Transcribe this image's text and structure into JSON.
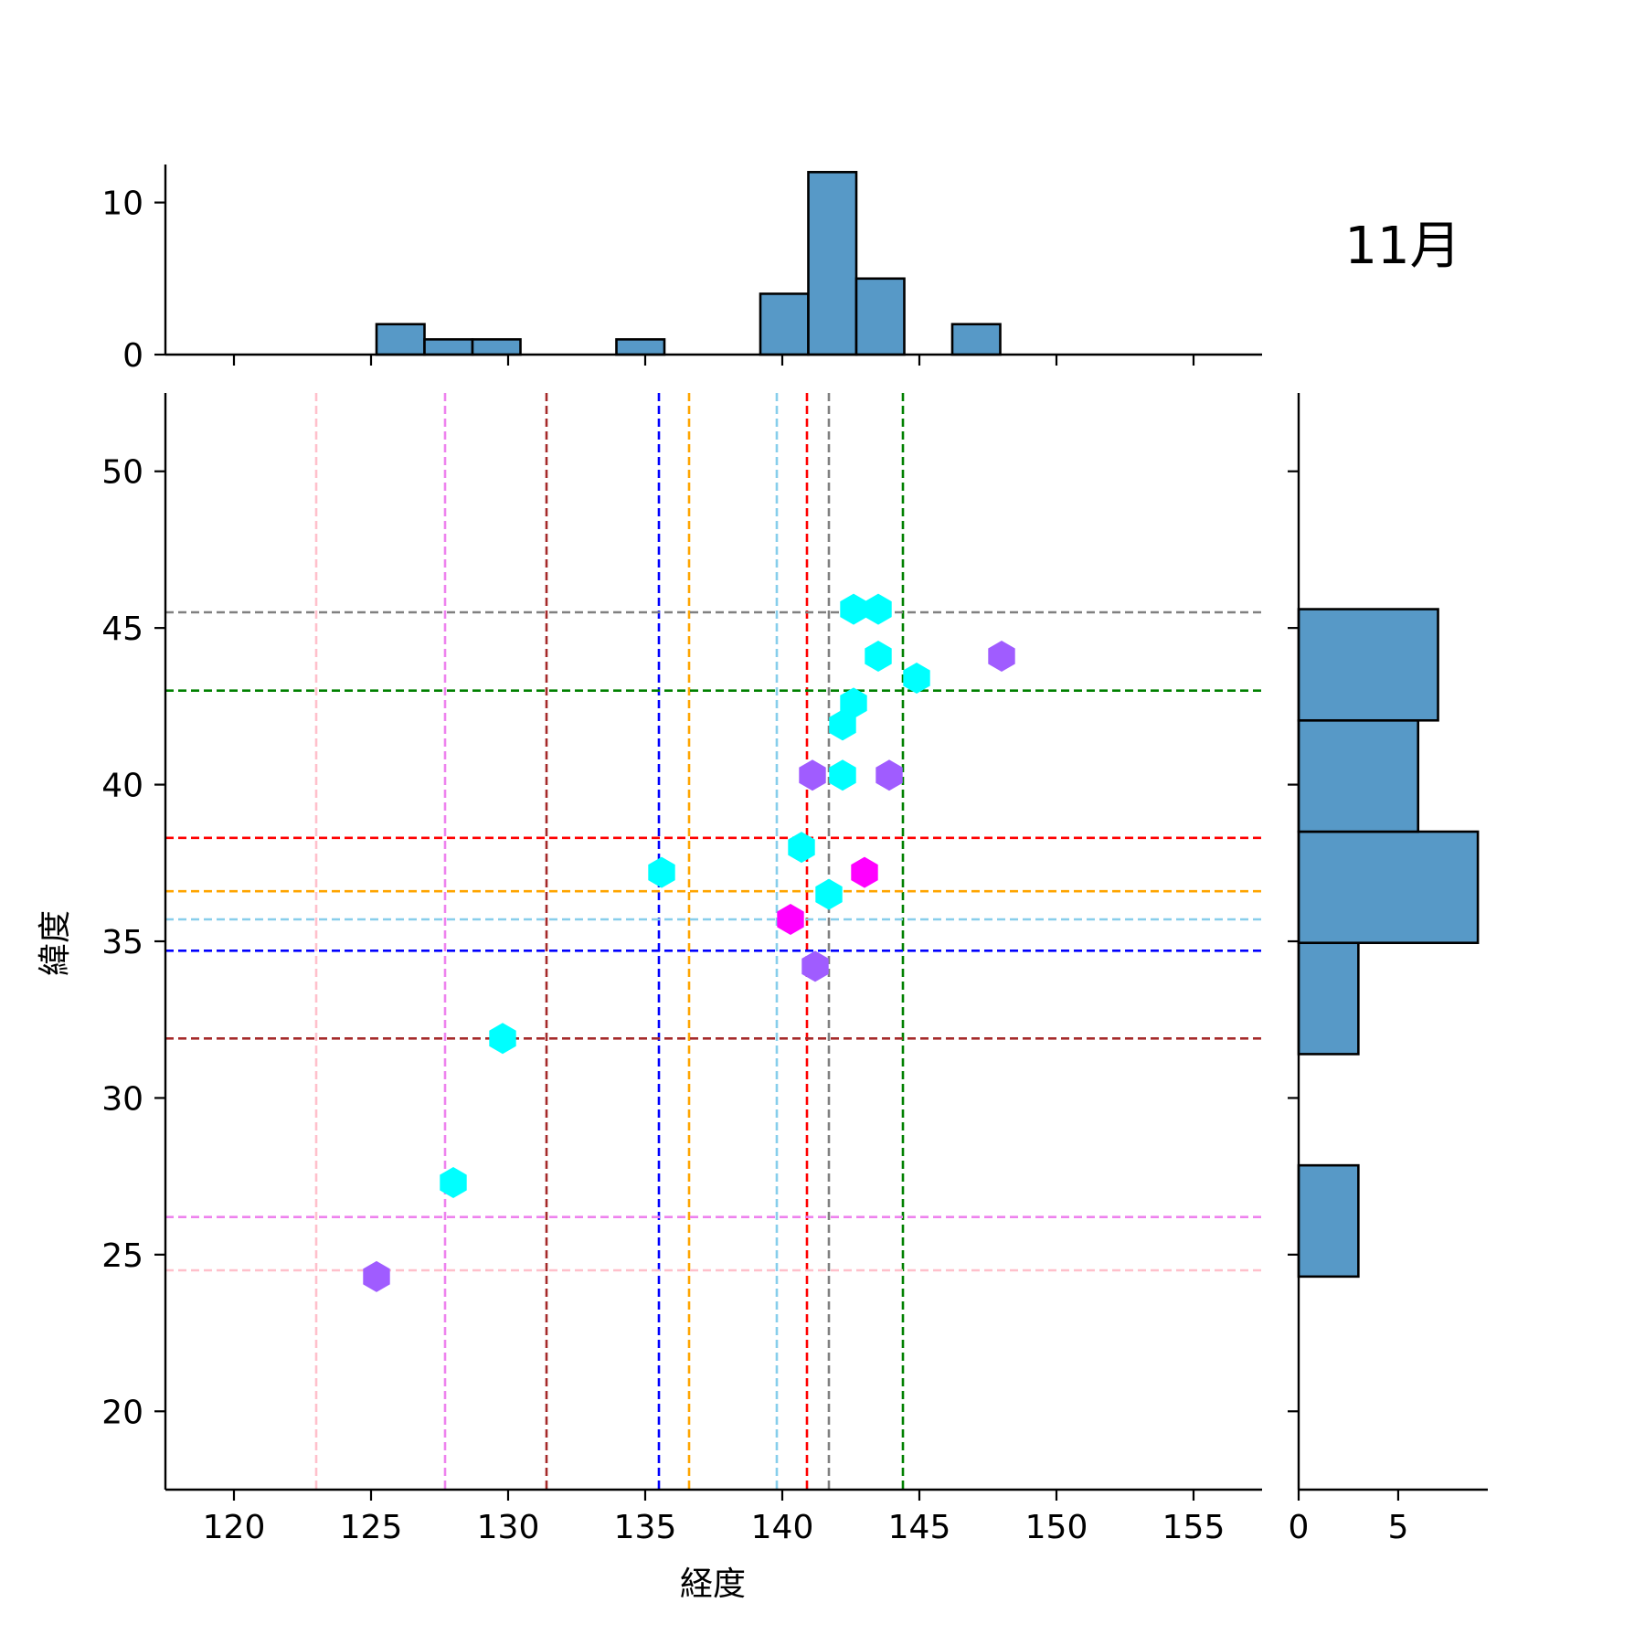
{
  "chart_data": {
    "type": "scatter",
    "title": "11月",
    "xlabel": "経度",
    "ylabel": "緯度",
    "xlim": [
      117.5,
      157.5
    ],
    "ylim": [
      17.5,
      52.5
    ],
    "xticks": [
      120,
      125,
      130,
      135,
      140,
      145,
      150,
      155
    ],
    "yticks": [
      20,
      25,
      30,
      35,
      40,
      45,
      50
    ],
    "marker": "hexagon",
    "points": [
      {
        "x": 125.2,
        "y": 24.3,
        "color": "#a05cff"
      },
      {
        "x": 128.0,
        "y": 27.3,
        "color": "#00ffff"
      },
      {
        "x": 129.8,
        "y": 31.9,
        "color": "#00ffff"
      },
      {
        "x": 135.6,
        "y": 37.2,
        "color": "#00ffff"
      },
      {
        "x": 140.3,
        "y": 35.7,
        "color": "#ff00ff"
      },
      {
        "x": 140.7,
        "y": 38.0,
        "color": "#00ffff"
      },
      {
        "x": 141.2,
        "y": 34.2,
        "color": "#a05cff"
      },
      {
        "x": 141.1,
        "y": 40.3,
        "color": "#a05cff"
      },
      {
        "x": 141.7,
        "y": 36.5,
        "color": "#00ffff"
      },
      {
        "x": 142.2,
        "y": 40.3,
        "color": "#00ffff"
      },
      {
        "x": 142.2,
        "y": 41.9,
        "color": "#00ffff"
      },
      {
        "x": 142.6,
        "y": 42.6,
        "color": "#00ffff"
      },
      {
        "x": 142.6,
        "y": 45.6,
        "color": "#00ffff"
      },
      {
        "x": 143.0,
        "y": 37.2,
        "color": "#ff00ff"
      },
      {
        "x": 143.5,
        "y": 45.6,
        "color": "#00ffff"
      },
      {
        "x": 143.5,
        "y": 44.1,
        "color": "#00ffff"
      },
      {
        "x": 143.9,
        "y": 40.3,
        "color": "#a05cff"
      },
      {
        "x": 144.9,
        "y": 43.4,
        "color": "#00ffff"
      },
      {
        "x": 148.0,
        "y": 44.1,
        "color": "#a05cff"
      }
    ],
    "vlines": [
      {
        "x": 123.0,
        "color": "#ffc0cb"
      },
      {
        "x": 127.7,
        "color": "#ee82ee"
      },
      {
        "x": 131.4,
        "color": "#a52a2a"
      },
      {
        "x": 135.5,
        "color": "#0000ff"
      },
      {
        "x": 136.6,
        "color": "#ffa500"
      },
      {
        "x": 139.8,
        "color": "#87ceeb"
      },
      {
        "x": 140.9,
        "color": "#ff0000"
      },
      {
        "x": 141.7,
        "color": "#808080"
      },
      {
        "x": 144.4,
        "color": "#008000"
      }
    ],
    "hlines": [
      {
        "y": 45.5,
        "color": "#808080"
      },
      {
        "y": 43.0,
        "color": "#008000"
      },
      {
        "y": 38.3,
        "color": "#ff0000"
      },
      {
        "y": 36.6,
        "color": "#ffa500"
      },
      {
        "y": 35.7,
        "color": "#87ceeb"
      },
      {
        "y": 34.7,
        "color": "#0000ff"
      },
      {
        "y": 31.9,
        "color": "#a52a2a"
      },
      {
        "y": 26.2,
        "color": "#ee82ee"
      },
      {
        "y": 24.5,
        "color": "#ffc0cb"
      }
    ],
    "top_histogram": {
      "ylim": [
        0,
        12.5
      ],
      "yticks": [
        0,
        10
      ],
      "bins": [
        {
          "x0": 125.2,
          "x1": 126.95,
          "count": 2
        },
        {
          "x0": 126.95,
          "x1": 128.7,
          "count": 1
        },
        {
          "x0": 128.7,
          "x1": 130.45,
          "count": 1
        },
        {
          "x0": 133.95,
          "x1": 135.7,
          "count": 1
        },
        {
          "x0": 139.2,
          "x1": 140.95,
          "count": 4
        },
        {
          "x0": 140.95,
          "x1": 142.7,
          "count": 12
        },
        {
          "x0": 142.7,
          "x1": 144.45,
          "count": 5
        },
        {
          "x0": 146.2,
          "x1": 147.95,
          "count": 2
        }
      ]
    },
    "right_histogram": {
      "xlim": [
        0,
        9.5
      ],
      "xticks": [
        0,
        5
      ],
      "bins": [
        {
          "y0": 24.3,
          "y1": 27.85,
          "count": 3
        },
        {
          "y0": 31.4,
          "y1": 34.95,
          "count": 3
        },
        {
          "y0": 34.95,
          "y1": 38.5,
          "count": 9
        },
        {
          "y0": 38.5,
          "y1": 42.05,
          "count": 6
        },
        {
          "y0": 42.05,
          "y1": 45.6,
          "count": 7
        }
      ]
    },
    "hist_color": "#5799c7",
    "grid": false
  }
}
